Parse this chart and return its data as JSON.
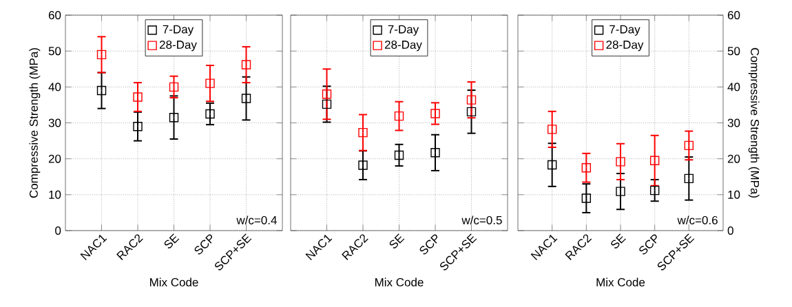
{
  "chart_data": [
    {
      "type": "scatter",
      "categories": [
        "NAC1",
        "RAC2",
        "SE",
        "SCP",
        "SCP+SE"
      ],
      "xlabel": "Mix Code",
      "ylabel": "Compressive Strength (MPa)",
      "ylim": [
        0,
        60
      ],
      "yticks": [
        0,
        10,
        20,
        30,
        40,
        50,
        60
      ],
      "grid": true,
      "legend": "top",
      "marker": "square",
      "annotations": [
        "w/c=0.4"
      ],
      "series": [
        {
          "name": "7-Day",
          "color": "#000000",
          "values": [
            39,
            29,
            31.5,
            32.5,
            36.8
          ],
          "errors": [
            5,
            4,
            6,
            3,
            6
          ]
        },
        {
          "name": "28-Day",
          "color": "#ff0000",
          "values": [
            49,
            37.2,
            40,
            41,
            46.2
          ],
          "errors": [
            5,
            4,
            3,
            5,
            5
          ]
        }
      ]
    },
    {
      "type": "scatter",
      "categories": [
        "NAC1",
        "RAC2",
        "SE",
        "SCP",
        "SCP+SE"
      ],
      "xlabel": "Mix Code",
      "ylim": [
        0,
        60
      ],
      "yticks": [
        0,
        10,
        20,
        30,
        40,
        50,
        60
      ],
      "tick_labels": "x",
      "grid": true,
      "legend": "top",
      "marker": "square",
      "annotations": [
        "w/c=0.5"
      ],
      "series": [
        {
          "name": "7-Day",
          "color": "#000000",
          "values": [
            35.2,
            18.2,
            21,
            21.7,
            33.1
          ],
          "errors": [
            5,
            4,
            3,
            5,
            6
          ]
        },
        {
          "name": "28-Day",
          "color": "#ff0000",
          "values": [
            38,
            27.3,
            31.9,
            32.6,
            36.4
          ],
          "errors": [
            7,
            5,
            4,
            3,
            5
          ]
        }
      ]
    },
    {
      "type": "scatter",
      "categories": [
        "NAC1",
        "RAC2",
        "SE",
        "SCP",
        "SCP+SE"
      ],
      "xlabel": "Mix Code",
      "y2label": "Compressive Strength (MPa)",
      "y2lim": [
        0,
        60
      ],
      "y2ticks": [
        0,
        10,
        20,
        30,
        40,
        50,
        60
      ],
      "grid": true,
      "legend": "top",
      "marker": "square",
      "annotations": [
        "w/c=0.6"
      ],
      "series": [
        {
          "name": "7-Day",
          "color": "#000000",
          "axis": "y2",
          "values": [
            18.3,
            9,
            10.9,
            11.2,
            14.5
          ],
          "errors": [
            6,
            4,
            5,
            3,
            6
          ]
        },
        {
          "name": "28-Day",
          "color": "#ff0000",
          "axis": "y2",
          "values": [
            28.2,
            17.5,
            19.2,
            19.5,
            23.7
          ],
          "errors": [
            5,
            4,
            5,
            7,
            4
          ]
        }
      ]
    }
  ]
}
